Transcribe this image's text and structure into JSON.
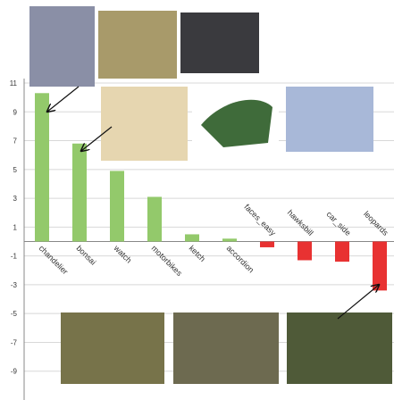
{
  "chart_data": {
    "type": "bar",
    "categories": [
      "chandelier",
      "bonsai",
      "watch",
      "motorbikes",
      "ketch",
      "accordion",
      "faces_easy",
      "hawksbill",
      "car_side",
      "leopards"
    ],
    "values": [
      10.3,
      6.8,
      4.9,
      3.1,
      0.5,
      0.2,
      -0.4,
      -1.3,
      -1.4,
      -3.4
    ],
    "positive_color": "#93c96b",
    "negative_color": "#e83232",
    "ylim": [
      -11,
      11
    ],
    "yticks": [
      -9,
      -7,
      -5,
      -3,
      -1,
      1,
      3,
      5,
      7,
      9,
      11
    ],
    "grid": true
  }
}
